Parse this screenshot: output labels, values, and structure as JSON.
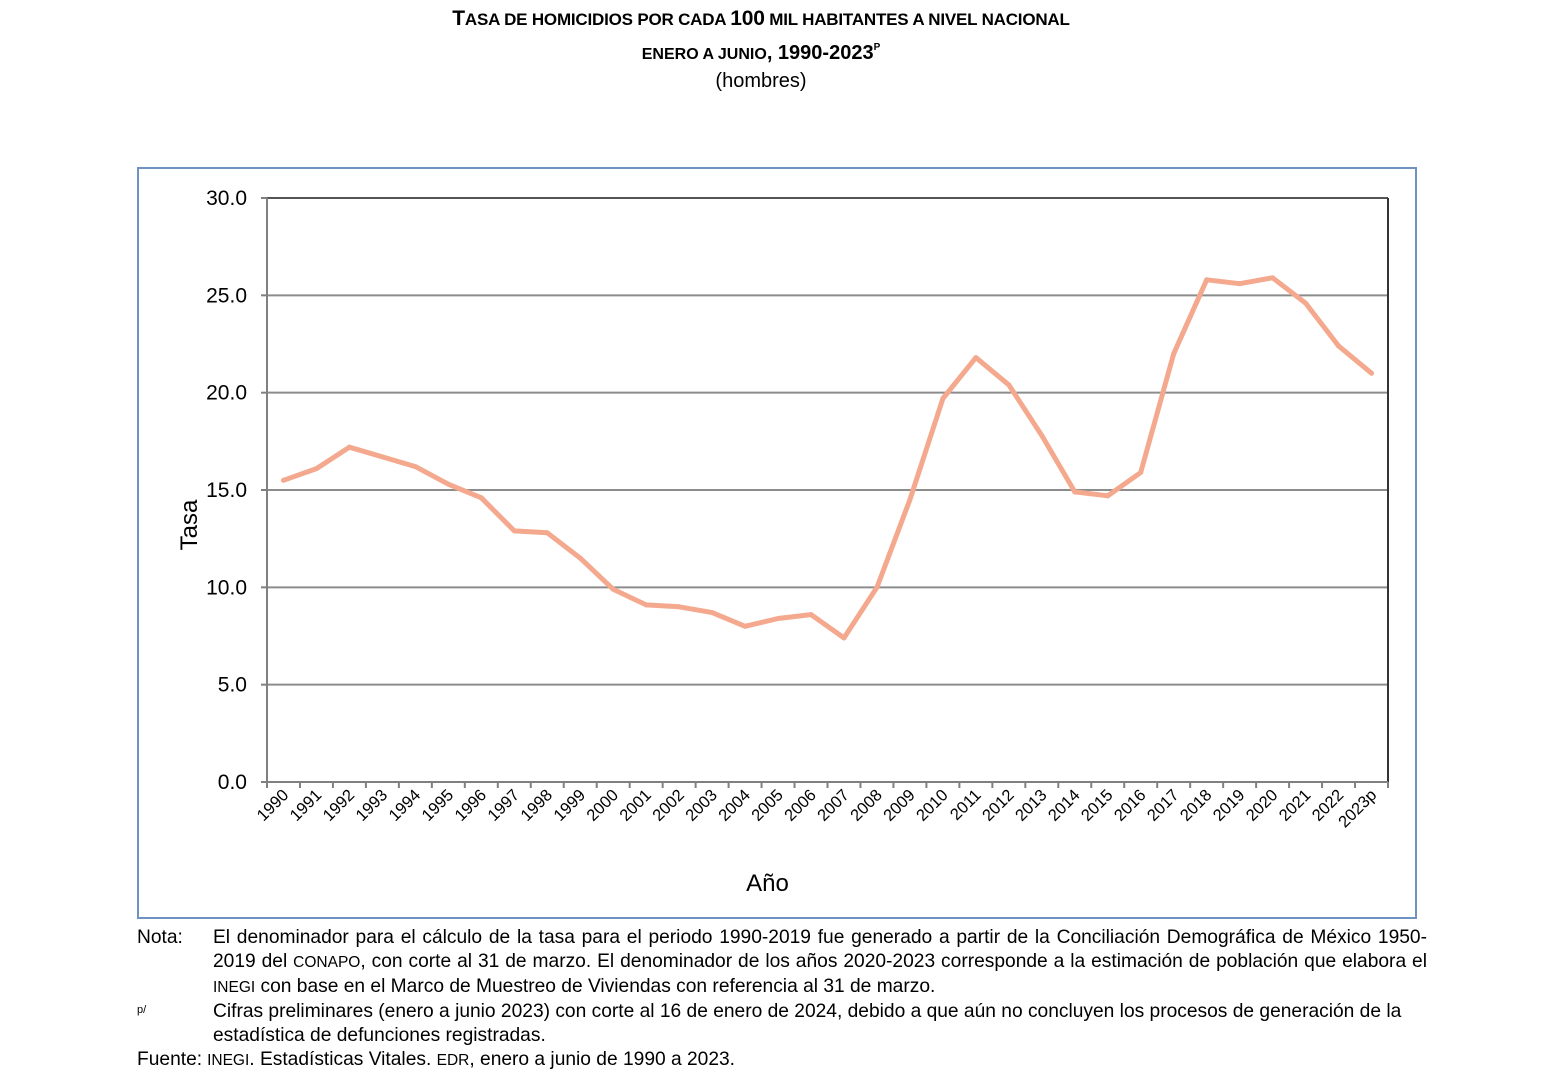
{
  "title": {
    "line1_parts": [
      {
        "text": "T",
        "sc": false
      },
      {
        "text": "ASA DE HOMICIDIOS POR CADA ",
        "sc": true
      },
      {
        "text": "100",
        "sc": false
      },
      {
        "text": " MIL HABITANTES A NIVEL NACIONAL",
        "sc": true
      }
    ],
    "line2_sc": "ENERO A JUNIO",
    "line2_main": ", 1990-2023",
    "line2_sup": "P",
    "line3": "(hombres)"
  },
  "chart_data": {
    "type": "line",
    "title": "Tasa de homicidios por cada 100 mil habitantes a nivel nacional, enero a junio, 1990-2023p (hombres)",
    "xlabel": "Año",
    "ylabel": "Tasa",
    "ylim": [
      0,
      30
    ],
    "yticks": [
      0,
      5,
      10,
      15,
      20,
      25,
      30
    ],
    "ytick_labels": [
      "0.0",
      "5.0",
      "10.0",
      "15.0",
      "20.0",
      "25.0",
      "30.0"
    ],
    "grid": true,
    "legend": "none",
    "categories": [
      "1990",
      "1991",
      "1992",
      "1993",
      "1994",
      "1995",
      "1996",
      "1997",
      "1998",
      "1999",
      "2000",
      "2001",
      "2002",
      "2003",
      "2004",
      "2005",
      "2006",
      "2007",
      "2008",
      "2009",
      "2010",
      "2011",
      "2012",
      "2013",
      "2014",
      "2015",
      "2016",
      "2017",
      "2018",
      "2019",
      "2020",
      "2021",
      "2022",
      "2023p"
    ],
    "series": [
      {
        "name": "Hombres",
        "color": "#f4a98e",
        "values": [
          15.5,
          16.1,
          17.2,
          16.7,
          16.2,
          15.3,
          14.6,
          12.9,
          12.8,
          11.5,
          9.9,
          9.1,
          9.0,
          8.7,
          8.0,
          8.4,
          8.6,
          7.4,
          10.0,
          14.5,
          19.7,
          21.8,
          20.4,
          17.8,
          14.9,
          14.7,
          15.9,
          22.0,
          25.8,
          25.6,
          25.9,
          24.6,
          22.4,
          21.0
        ]
      }
    ],
    "colors": {
      "frame": "#6f93c0",
      "grid": "#8c8c8c",
      "axis": "#808080"
    }
  },
  "notes": {
    "nota_label": "Nota:",
    "nota_parts": [
      {
        "text": "El denominador para el cálculo de la tasa para el periodo 1990-2019 fue generado a partir de la Conciliación Demográfica de México 1950-2019 del ",
        "sc": false
      },
      {
        "text": "CONAPO",
        "sc": true
      },
      {
        "text": ", con corte al 31 de marzo. El denominador de los años 2020-2023 corresponde a la estimación de población que elabora el ",
        "sc": false
      },
      {
        "text": "INEGI",
        "sc": true
      },
      {
        "text": " con base en el Marco de Muestreo de Viviendas con referencia al 31 de marzo.",
        "sc": false
      }
    ],
    "p_label": "p/",
    "p_text": "Cifras preliminares (enero a junio 2023) con corte al 16 de enero de 2024, debido a que aún no concluyen los procesos de generación de la estadística de defunciones registradas.",
    "fuente_label": "Fuente:",
    "fuente_parts": [
      {
        "text": "INEGI",
        "sc": true
      },
      {
        "text": ". Estadísticas Vitales. ",
        "sc": false
      },
      {
        "text": "EDR",
        "sc": true
      },
      {
        "text": ", enero a junio de 1990 a 2023.",
        "sc": false
      }
    ]
  }
}
